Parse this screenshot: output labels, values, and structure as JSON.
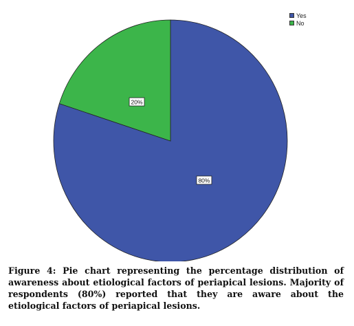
{
  "chart_data": {
    "type": "pie",
    "categories": [
      "Yes",
      "No"
    ],
    "values": [
      80,
      20
    ],
    "data_labels": [
      "80%",
      "20%"
    ],
    "colors": [
      "#3f56a8",
      "#3cb54a"
    ],
    "legend": "top-right",
    "start_angle": "12 o'clock",
    "direction": "clockwise"
  },
  "caption": "Figure 4: Pie chart representing the percentage distribution of awareness about etiological factors of periapical lesions. Majority of respondents (80%) reported that they are aware about the etiological factors of periapical lesions."
}
